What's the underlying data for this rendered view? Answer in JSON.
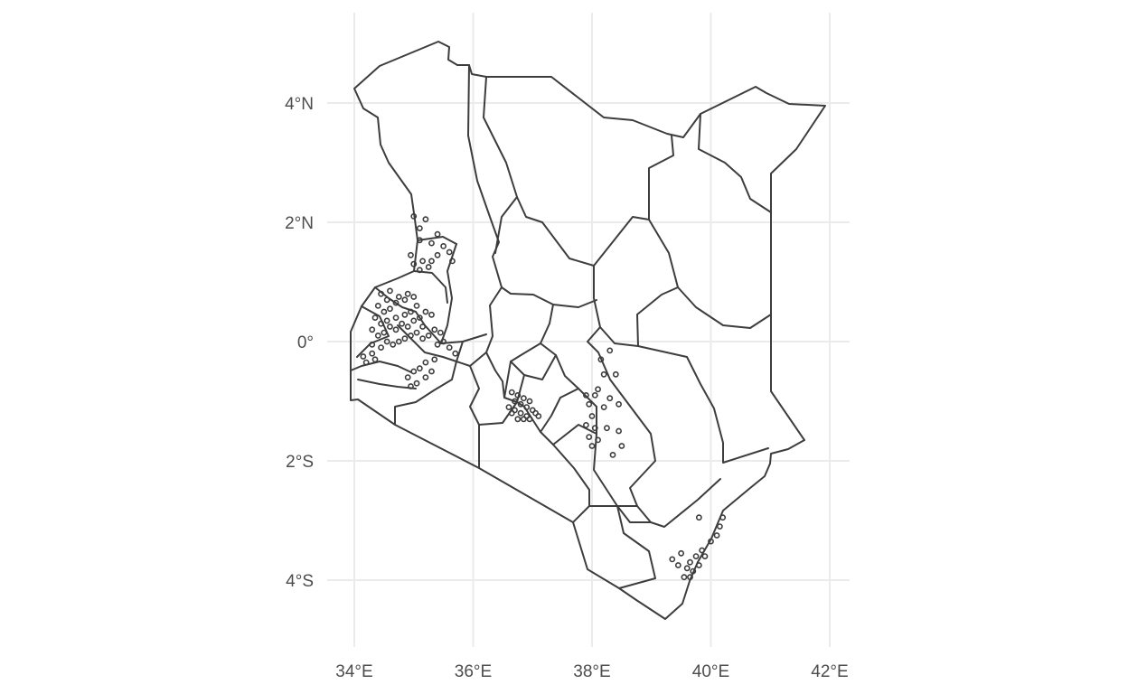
{
  "chart_data": {
    "type": "map",
    "title": "",
    "xlabel": "",
    "ylabel": "",
    "xlim": [
      34,
      42
    ],
    "ylim": [
      -4,
      4
    ],
    "grid": true,
    "x_ticks": [
      {
        "value": 34,
        "label": "34°E"
      },
      {
        "value": 36,
        "label": "36°E"
      },
      {
        "value": 38,
        "label": "38°E"
      },
      {
        "value": 40,
        "label": "40°E"
      },
      {
        "value": 42,
        "label": "42°E"
      }
    ],
    "y_ticks": [
      {
        "value": 4,
        "label": "4°N"
      },
      {
        "value": 2,
        "label": "2°N"
      },
      {
        "value": 0,
        "label": "0°"
      },
      {
        "value": -2,
        "label": "2°S"
      },
      {
        "value": -4,
        "label": "4°S"
      }
    ],
    "colors": {
      "boundary": "#3d3d3d",
      "grid": "#ebebeb",
      "point": "#3d3d3d",
      "text": "#4d4d4d"
    },
    "points": [
      [
        35.0,
        2.1
      ],
      [
        35.2,
        2.05
      ],
      [
        35.1,
        1.9
      ],
      [
        35.1,
        1.7
      ],
      [
        35.3,
        1.65
      ],
      [
        35.4,
        1.8
      ],
      [
        35.5,
        1.6
      ],
      [
        35.4,
        1.45
      ],
      [
        35.3,
        1.35
      ],
      [
        35.15,
        1.35
      ],
      [
        35.0,
        1.3
      ],
      [
        34.95,
        1.45
      ],
      [
        35.1,
        1.2
      ],
      [
        35.25,
        1.25
      ],
      [
        35.6,
        1.5
      ],
      [
        35.65,
        1.35
      ],
      [
        34.45,
        0.8
      ],
      [
        34.6,
        0.85
      ],
      [
        34.55,
        0.7
      ],
      [
        34.4,
        0.6
      ],
      [
        34.5,
        0.5
      ],
      [
        34.6,
        0.55
      ],
      [
        34.7,
        0.65
      ],
      [
        34.75,
        0.75
      ],
      [
        34.85,
        0.7
      ],
      [
        34.9,
        0.8
      ],
      [
        35.0,
        0.75
      ],
      [
        35.05,
        0.6
      ],
      [
        34.95,
        0.5
      ],
      [
        34.85,
        0.45
      ],
      [
        34.7,
        0.4
      ],
      [
        34.55,
        0.35
      ],
      [
        34.45,
        0.3
      ],
      [
        34.35,
        0.4
      ],
      [
        34.3,
        0.2
      ],
      [
        34.4,
        0.1
      ],
      [
        34.5,
        0.15
      ],
      [
        34.6,
        0.25
      ],
      [
        34.7,
        0.2
      ],
      [
        34.8,
        0.3
      ],
      [
        34.9,
        0.25
      ],
      [
        35.0,
        0.35
      ],
      [
        35.1,
        0.4
      ],
      [
        35.2,
        0.5
      ],
      [
        35.3,
        0.45
      ],
      [
        35.15,
        0.25
      ],
      [
        35.05,
        0.15
      ],
      [
        34.95,
        0.1
      ],
      [
        34.85,
        0.05
      ],
      [
        34.75,
        0.0
      ],
      [
        34.65,
        -0.05
      ],
      [
        34.55,
        0.0
      ],
      [
        34.45,
        -0.1
      ],
      [
        34.3,
        -0.2
      ],
      [
        34.35,
        -0.3
      ],
      [
        35.15,
        0.05
      ],
      [
        35.25,
        0.1
      ],
      [
        35.35,
        0.2
      ],
      [
        35.45,
        0.15
      ],
      [
        35.5,
        0.0
      ],
      [
        35.4,
        -0.05
      ],
      [
        35.6,
        -0.1
      ],
      [
        35.7,
        -0.2
      ],
      [
        35.35,
        -0.3
      ],
      [
        35.2,
        -0.35
      ],
      [
        35.1,
        -0.45
      ],
      [
        35.0,
        -0.5
      ],
      [
        34.9,
        -0.6
      ],
      [
        34.95,
        -0.75
      ],
      [
        35.05,
        -0.7
      ],
      [
        35.2,
        -0.6
      ],
      [
        35.3,
        -0.5
      ],
      [
        34.2,
        -0.35
      ],
      [
        34.15,
        -0.25
      ],
      [
        34.3,
        -0.05
      ],
      [
        36.65,
        -0.85
      ],
      [
        36.75,
        -0.9
      ],
      [
        36.85,
        -0.95
      ],
      [
        36.95,
        -1.0
      ],
      [
        36.7,
        -1.0
      ],
      [
        36.8,
        -1.05
      ],
      [
        36.9,
        -1.1
      ],
      [
        37.0,
        -1.15
      ],
      [
        36.7,
        -1.15
      ],
      [
        36.8,
        -1.2
      ],
      [
        36.9,
        -1.25
      ],
      [
        37.05,
        -1.2
      ],
      [
        36.75,
        -1.3
      ],
      [
        36.85,
        -1.3
      ],
      [
        36.95,
        -1.3
      ],
      [
        37.1,
        -1.25
      ],
      [
        36.65,
        -1.2
      ],
      [
        36.6,
        -1.1
      ],
      [
        38.3,
        -0.15
      ],
      [
        38.15,
        -0.3
      ],
      [
        38.2,
        -0.55
      ],
      [
        38.4,
        -0.55
      ],
      [
        38.1,
        -0.8
      ],
      [
        37.9,
        -0.9
      ],
      [
        37.95,
        -1.05
      ],
      [
        38.0,
        -1.25
      ],
      [
        37.9,
        -1.4
      ],
      [
        38.05,
        -1.45
      ],
      [
        38.25,
        -1.45
      ],
      [
        38.45,
        -1.5
      ],
      [
        38.1,
        -1.65
      ],
      [
        38.0,
        -1.75
      ],
      [
        38.5,
        -1.75
      ],
      [
        38.35,
        -1.9
      ],
      [
        38.45,
        -1.05
      ],
      [
        38.2,
        -1.1
      ],
      [
        37.95,
        -1.6
      ],
      [
        38.3,
        -0.95
      ],
      [
        38.05,
        -0.9
      ],
      [
        39.8,
        -2.95
      ],
      [
        40.2,
        -2.95
      ],
      [
        40.15,
        -3.1
      ],
      [
        40.1,
        -3.25
      ],
      [
        40.0,
        -3.35
      ],
      [
        39.85,
        -3.5
      ],
      [
        39.75,
        -3.6
      ],
      [
        39.65,
        -3.7
      ],
      [
        39.6,
        -3.8
      ],
      [
        39.7,
        -3.85
      ],
      [
        39.8,
        -3.75
      ],
      [
        39.55,
        -3.95
      ],
      [
        39.65,
        -3.95
      ],
      [
        39.5,
        -3.55
      ],
      [
        39.35,
        -3.65
      ],
      [
        39.45,
        -3.75
      ],
      [
        39.9,
        -3.6
      ]
    ]
  }
}
